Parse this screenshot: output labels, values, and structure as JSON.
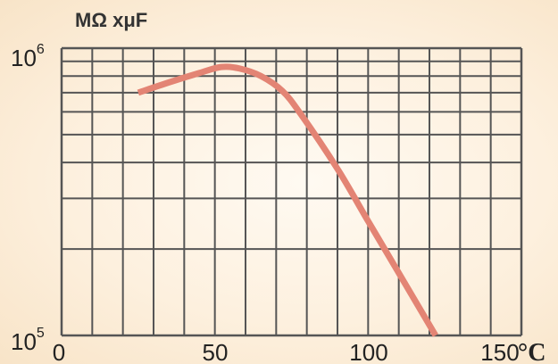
{
  "chart_data": {
    "type": "line",
    "title": "",
    "ylabel": "MΩ xμF",
    "xlabel": "°C",
    "x_ticks": [
      "0",
      "50",
      "100",
      "150"
    ],
    "y_ticks": [
      {
        "base": "10",
        "exp": "5"
      },
      {
        "base": "10",
        "exp": "6"
      }
    ],
    "xlim": [
      0,
      150
    ],
    "ylim": [
      100000,
      1000000
    ],
    "y_scale": "log",
    "grid": true,
    "colors": {
      "line": "#e38474",
      "grid": "#555555"
    },
    "series": [
      {
        "x": [
          25,
          35,
          45,
          52,
          58,
          65,
          72,
          78,
          90,
          100,
          110,
          122
        ],
        "y": [
          700000,
          760000,
          820000,
          860000,
          850000,
          800000,
          710000,
          590000,
          380000,
          250000,
          165000,
          100000
        ]
      }
    ]
  }
}
